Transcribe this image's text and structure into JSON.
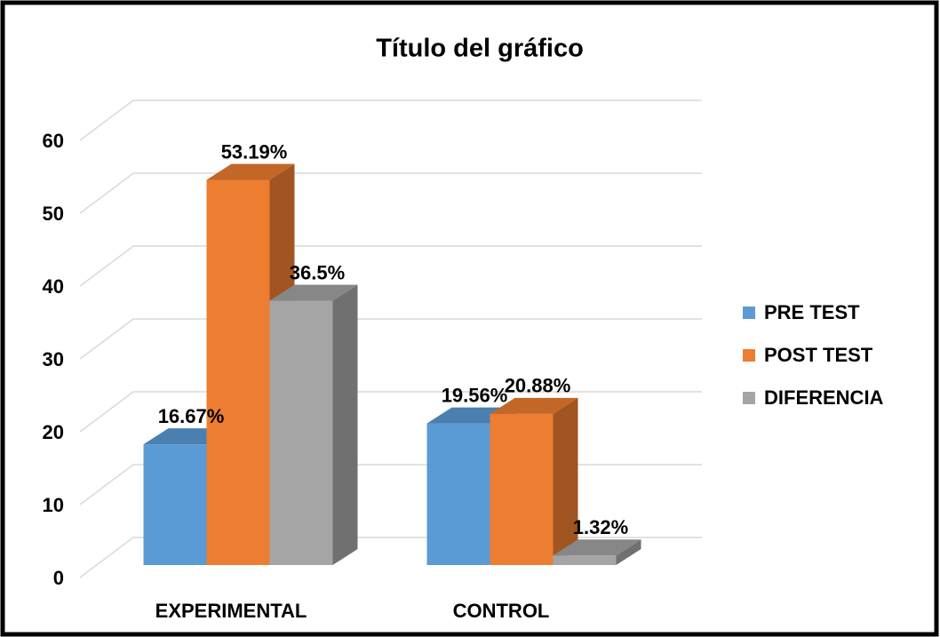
{
  "chart_data": {
    "type": "bar3d",
    "title": "Título del gráfico",
    "categories": [
      "EXPERIMENTAL",
      "CONTROL"
    ],
    "series": [
      {
        "name": "PRE TEST",
        "color": "#5b9bd5",
        "values": [
          16.67,
          19.56
        ],
        "value_labels": [
          "16.67%",
          "19.56%"
        ]
      },
      {
        "name": "POST TEST",
        "color": "#ed7d31",
        "values": [
          53.19,
          20.88
        ],
        "value_labels": [
          "53.19%",
          "20.88%"
        ]
      },
      {
        "name": "DIFERENCIA",
        "color": "#a5a5a5",
        "values": [
          36.5,
          1.32
        ],
        "value_labels": [
          "36.5%",
          "1.32%"
        ]
      }
    ],
    "ylim": [
      0,
      60
    ],
    "yticks": [
      0,
      10,
      20,
      30,
      40,
      50,
      60
    ],
    "grid": true,
    "legend": "right"
  }
}
